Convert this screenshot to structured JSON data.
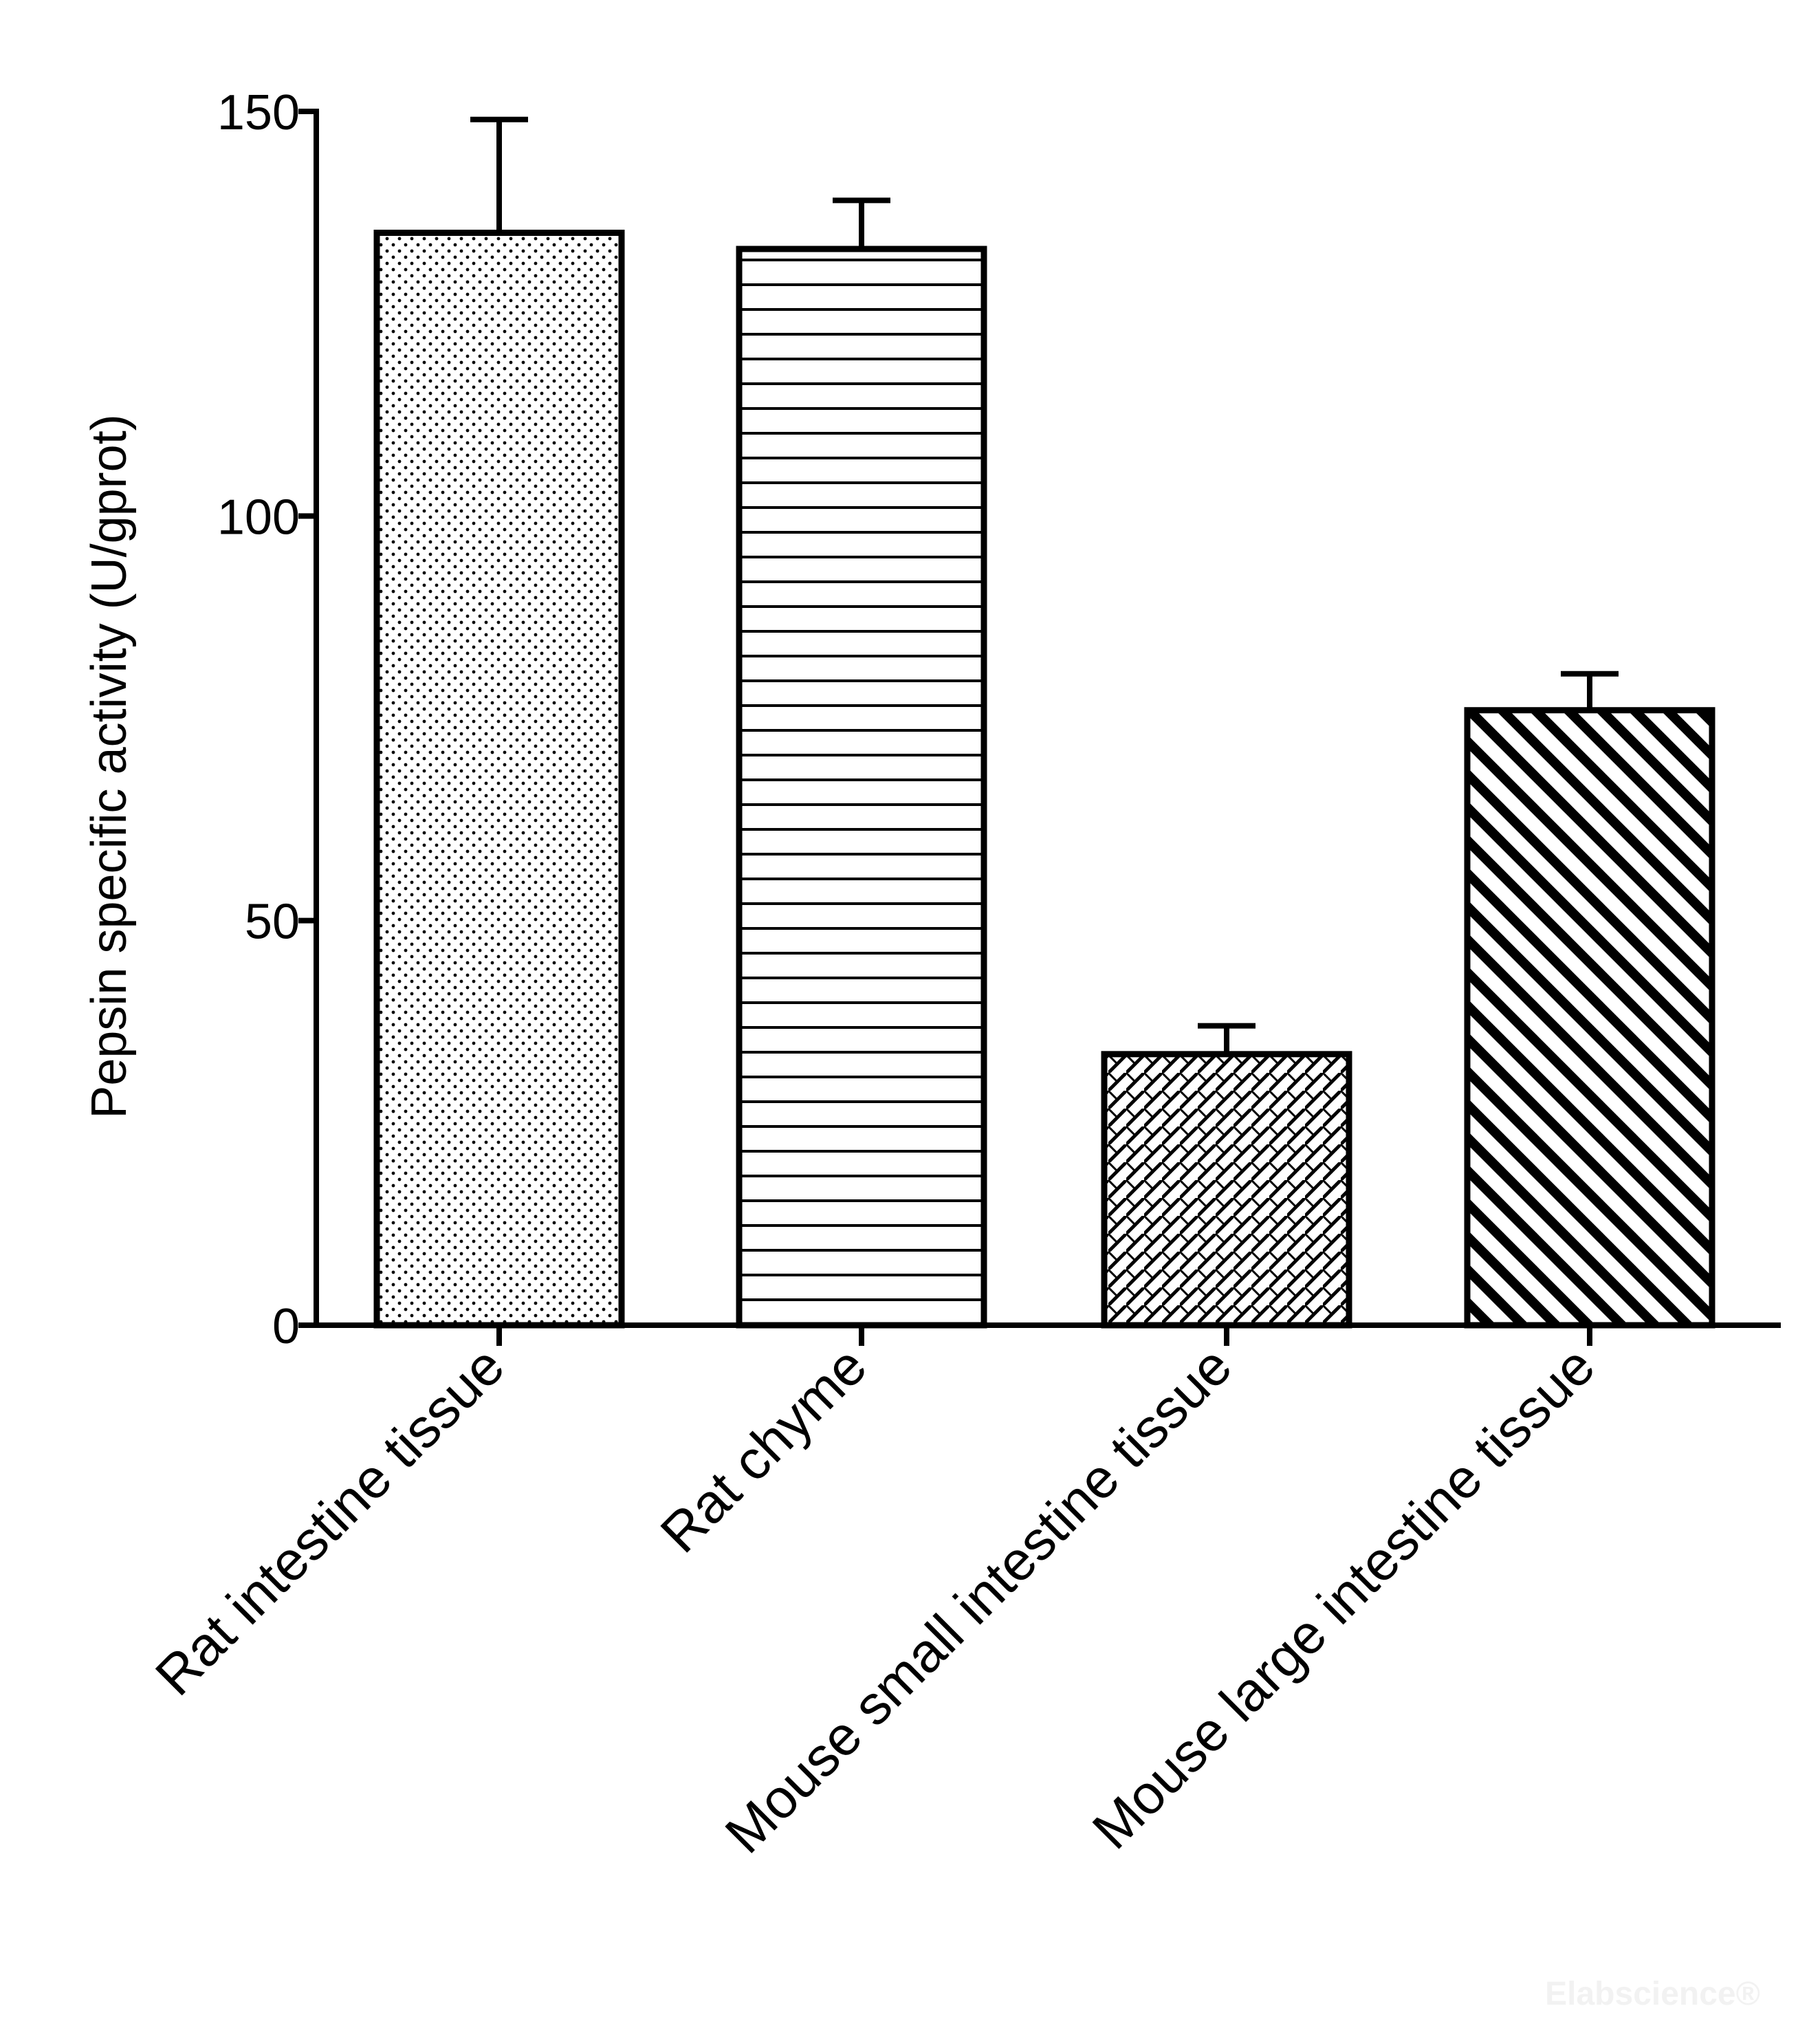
{
  "chart_data": {
    "type": "bar",
    "title": "",
    "xlabel": "",
    "ylabel": "Pepsin specific activity (U/gprot)",
    "ylim": [
      0,
      150
    ],
    "yticks": [
      0,
      50,
      100,
      150
    ],
    "categories": [
      "Rat intestine tissue",
      "Rat chyme",
      "Mouse small intestine tissue",
      "Mouse large intestine tissue"
    ],
    "values": [
      135,
      133,
      33.5,
      76
    ],
    "error_upper": [
      149,
      139,
      37,
      80.5
    ],
    "patterns": [
      "dots",
      "horizontal-lines",
      "crosshatch",
      "diagonal-stripes"
    ],
    "grid": false,
    "legend": "none"
  },
  "watermark": "Elabscience®",
  "colors": {
    "ink": "#000000",
    "background": "#ffffff"
  }
}
